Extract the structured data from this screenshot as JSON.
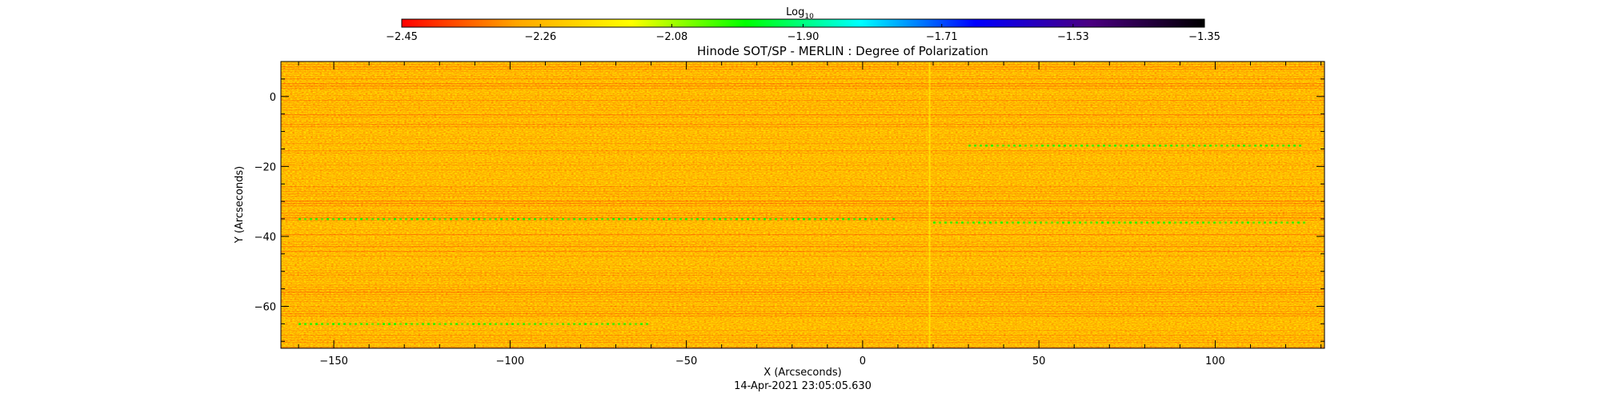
{
  "chart_data": {
    "type": "heatmap",
    "title": "Hinode SOT/SP - MERLIN : Degree of Polarization",
    "xlabel": "X (Arcseconds)",
    "ylabel": "Y (Arcseconds)",
    "timestamp": "14-Apr-2021 23:05:05.630",
    "xlim": [
      -165,
      131
    ],
    "ylim": [
      -72,
      10
    ],
    "x_ticks": [
      -150,
      -100,
      -50,
      0,
      50,
      100
    ],
    "x_tick_labels": [
      "−150",
      "−100",
      "−50",
      "0",
      "50",
      "100"
    ],
    "y_ticks": [
      0,
      -20,
      -40,
      -60
    ],
    "y_tick_labels": [
      "0",
      "−20",
      "−40",
      "−60"
    ],
    "colorbar": {
      "label_base": "Log",
      "label_sub": "10",
      "range": [
        -2.45,
        -1.35
      ],
      "ticks": [
        -2.45,
        -2.26,
        -2.08,
        -1.9,
        -1.71,
        -1.53,
        -1.35
      ],
      "tick_labels": [
        "−2.45",
        "−2.26",
        "−2.08",
        "−1.90",
        "−1.71",
        "−1.53",
        "−1.35"
      ],
      "colors": [
        "#ff0000",
        "#ffa500",
        "#ffff00",
        "#00ff00",
        "#00ffff",
        "#0000ff",
        "#4b0082",
        "#000000"
      ]
    },
    "dominant_range": [
      -2.45,
      -2.2
    ],
    "features": [
      {
        "kind": "horizontal-streak",
        "y": -65,
        "x": [
          -160,
          -60
        ],
        "value": -1.95
      },
      {
        "kind": "horizontal-streak",
        "y": -35,
        "x": [
          -160,
          10
        ],
        "value": -2.02
      },
      {
        "kind": "horizontal-streak",
        "y": -36,
        "x": [
          20,
          125
        ],
        "value": -2.05
      },
      {
        "kind": "horizontal-streak",
        "y": -14,
        "x": [
          30,
          125
        ],
        "value": -2.05
      },
      {
        "kind": "vertical-streak",
        "x": 19,
        "y": [
          -72,
          10
        ],
        "value": -2.06
      }
    ]
  }
}
